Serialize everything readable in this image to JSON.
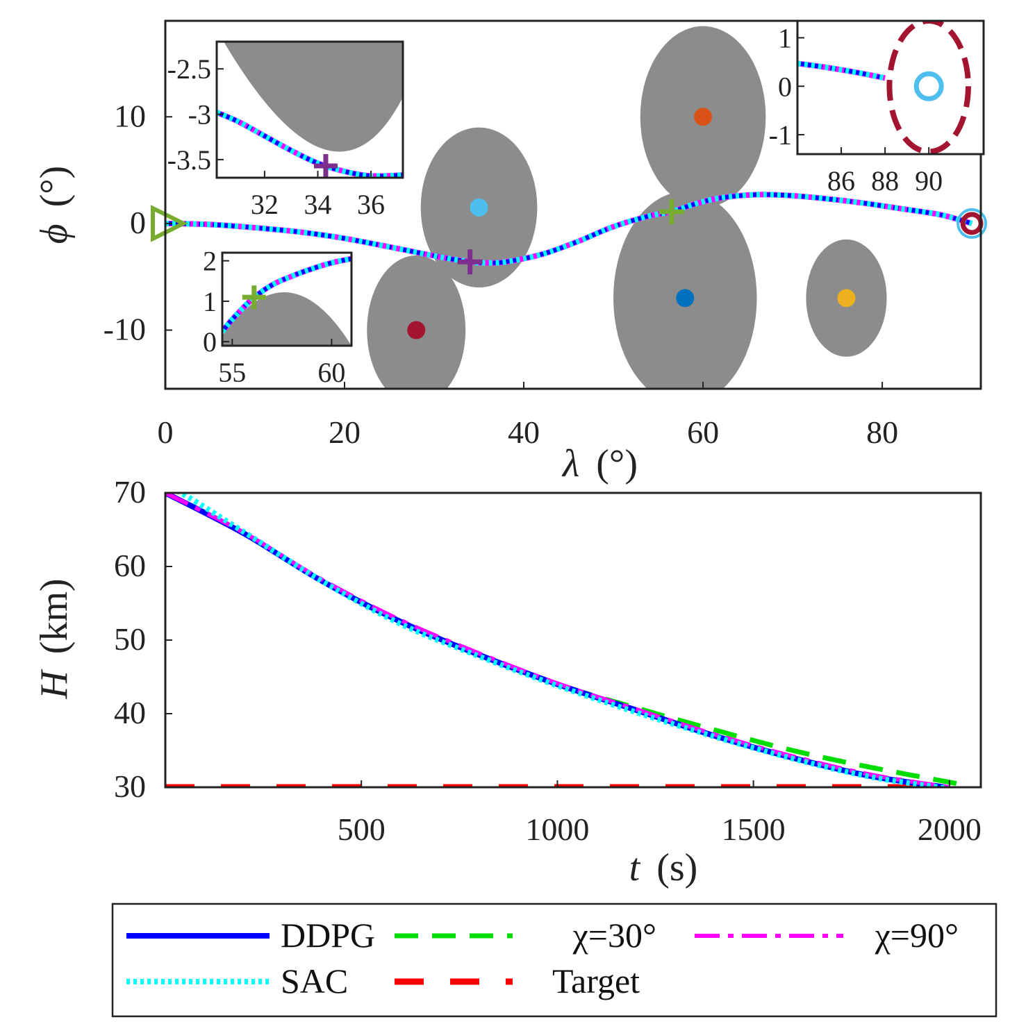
{
  "chart_data": [
    {
      "type": "line",
      "xlabel_symbol": "λ",
      "xlabel_unit": "(°)",
      "ylabel_symbol": "ϕ",
      "ylabel_unit": "(°)",
      "xlim": [
        0,
        91
      ],
      "ylim": [
        -15.5,
        19
      ],
      "xticks": [
        "0",
        "20",
        "40",
        "60",
        "80"
      ],
      "xtick_values": [
        0,
        20,
        40,
        60,
        80
      ],
      "yticks": [
        "-10",
        "0",
        "10"
      ],
      "ytick_values": [
        -10,
        0,
        10
      ],
      "trajectory": {
        "x": [
          0,
          5,
          10,
          15,
          20,
          25,
          28,
          31,
          34,
          36,
          38,
          42,
          46,
          50,
          54,
          56.5,
          59,
          62,
          66,
          70,
          74,
          78,
          82,
          86,
          88,
          90
        ],
        "y": [
          0,
          -0.1,
          -0.4,
          -0.8,
          -1.4,
          -2.2,
          -2.7,
          -3.2,
          -3.6,
          -3.7,
          -3.6,
          -2.9,
          -1.7,
          -0.3,
          0.7,
          1.1,
          1.8,
          2.4,
          2.7,
          2.6,
          2.3,
          1.9,
          1.4,
          0.9,
          0.5,
          0
        ]
      },
      "no_fly_zones": [
        {
          "center": [
            28,
            -10
          ],
          "radius": [
            5.5,
            7
          ],
          "color": "#a2142f"
        },
        {
          "center": [
            35,
            1.5
          ],
          "radius": [
            6.5,
            7.5
          ],
          "color": "#4dbeee"
        },
        {
          "center": [
            58,
            -7
          ],
          "radius": [
            8,
            10
          ],
          "color": "#0072bd"
        },
        {
          "center": [
            60,
            10
          ],
          "radius": [
            7,
            8.5
          ],
          "color": "#d95319"
        },
        {
          "center": [
            76,
            -7
          ],
          "radius": [
            4.5,
            5.5
          ],
          "color": "#edb120"
        }
      ],
      "markers": [
        {
          "name": "start",
          "symbol": "triangle",
          "x": 0,
          "y": 0,
          "color": "#77ac30"
        },
        {
          "name": "plus-a",
          "symbol": "plus",
          "x": 34,
          "y": -3.6,
          "color": "#7e2f8e"
        },
        {
          "name": "plus-b",
          "symbol": "plus",
          "x": 56.5,
          "y": 1.1,
          "color": "#77ac30"
        },
        {
          "name": "goal",
          "symbol": "ring",
          "x": 90,
          "y": 0,
          "color": "#a2142f"
        }
      ],
      "insets": [
        {
          "name": "inset-left-top",
          "xlim": [
            30.2,
            37.2
          ],
          "ylim": [
            -3.7,
            -2.2
          ],
          "xticks": [
            "32",
            "34",
            "36"
          ],
          "xtick_values": [
            32,
            34,
            36
          ],
          "yticks": [
            "-2.5",
            "-3",
            "-3.5"
          ],
          "ytick_values": [
            -2.5,
            -3,
            -3.5
          ],
          "curve": {
            "x": [
              30.2,
              31,
              32,
              33,
              34,
              35,
              36,
              37.2
            ],
            "y": [
              -2.98,
              -3.08,
              -3.24,
              -3.4,
              -3.54,
              -3.63,
              -3.68,
              -3.67
            ]
          },
          "marker": {
            "x": 34.3,
            "y": -3.57,
            "color": "#7e2f8e"
          }
        },
        {
          "name": "inset-left-bottom",
          "xlim": [
            54.5,
            61
          ],
          "ylim": [
            -0.1,
            2.2
          ],
          "xticks": [
            "55",
            "60"
          ],
          "xtick_values": [
            55,
            60
          ],
          "yticks": [
            "2",
            "1",
            "0"
          ],
          "ytick_values": [
            2,
            1,
            0
          ],
          "curve": {
            "x": [
              54.5,
              55,
              56,
              57,
              58,
              59,
              60,
              61
            ],
            "y": [
              0.25,
              0.55,
              1.05,
              1.4,
              1.62,
              1.8,
              1.95,
              2.05
            ]
          },
          "marker": {
            "x": 56.1,
            "y": 1.1,
            "color": "#77ac30"
          }
        },
        {
          "name": "inset-right",
          "xlim": [
            84,
            92.5
          ],
          "ylim": [
            -1.4,
            1.35
          ],
          "xticks": [
            "86",
            "88",
            "90"
          ],
          "xtick_values": [
            86,
            88,
            90
          ],
          "yticks": [
            "1",
            "0",
            "-1"
          ],
          "ytick_values": [
            1,
            0,
            -1
          ],
          "curve": {
            "x": [
              84,
              85,
              86,
              87,
              88
            ],
            "y": [
              0.47,
              0.41,
              0.34,
              0.26,
              0.17
            ]
          },
          "target_circle": {
            "x": 90,
            "y": 0,
            "color": "#4dbeee"
          },
          "goal_ellipse": {
            "x": 90,
            "y": 0,
            "rx": 1.8,
            "ry": 1.35,
            "color": "#a2142f"
          }
        }
      ]
    },
    {
      "type": "line",
      "xlabel_symbol": "t",
      "xlabel_unit": "(s)",
      "ylabel_symbol": "H",
      "ylabel_unit": "(km)",
      "xlim": [
        0,
        2080
      ],
      "ylim": [
        30,
        70
      ],
      "xticks": [
        "500",
        "1000",
        "1500",
        "2000"
      ],
      "xtick_values": [
        500,
        1000,
        1500,
        2000
      ],
      "yticks": [
        "70",
        "60",
        "50",
        "40",
        "30"
      ],
      "ytick_values": [
        70,
        60,
        50,
        40,
        30
      ],
      "series": [
        {
          "name": "DDPG",
          "color": "#0000ff",
          "style": "solid",
          "x": [
            0,
            200,
            400,
            600,
            800,
            1000,
            1200,
            1400,
            1600,
            1800,
            1990
          ],
          "y": [
            70,
            64.5,
            58,
            52.5,
            48,
            44,
            40.5,
            37,
            34,
            31.5,
            30
          ]
        },
        {
          "name": "χ=30°",
          "color": "#00dd00",
          "style": "dash",
          "x": [
            0,
            200,
            400,
            600,
            800,
            1000,
            1200,
            1400,
            1600,
            1800,
            2050
          ],
          "y": [
            70,
            64.5,
            58,
            52.5,
            48,
            44,
            40.8,
            37.8,
            35,
            32.7,
            30.2
          ]
        },
        {
          "name": "χ=90°",
          "color": "#ff00ff",
          "style": "dashdot",
          "x": [
            0,
            200,
            400,
            600,
            800,
            1000,
            1200,
            1400,
            1600,
            1800,
            2000
          ],
          "y": [
            70,
            64.6,
            58.2,
            52.7,
            48.2,
            44.1,
            40.6,
            37.2,
            34.2,
            31.7,
            30
          ]
        },
        {
          "name": "SAC",
          "color": "#00ffff",
          "style": "dot",
          "x": [
            0,
            30,
            200,
            400,
            600,
            800,
            1000,
            1200,
            1400,
            1600,
            1800,
            2000
          ],
          "y": [
            70.2,
            70.3,
            64.7,
            58,
            52.2,
            47.8,
            43.8,
            40.2,
            36.9,
            33.9,
            31.4,
            29.8
          ]
        },
        {
          "name": "Target",
          "color": "#ff0000",
          "style": "longdash",
          "x": [
            0,
            1930
          ],
          "y": [
            30,
            30
          ]
        }
      ]
    }
  ],
  "legend": {
    "placement": "bottom",
    "entries": [
      {
        "label": "DDPG",
        "color": "#0000ff",
        "style": "solid"
      },
      {
        "label": "χ=30°",
        "color": "#00dd00",
        "style": "dash"
      },
      {
        "label": "χ=90°",
        "color": "#ff00ff",
        "style": "dashdot"
      },
      {
        "label": "SAC",
        "color": "#00ffff",
        "style": "dot"
      },
      {
        "label": "Target",
        "color": "#ff0000",
        "style": "longdash"
      }
    ]
  },
  "colors": {
    "no_fly_zone_fill": "#8c8c8c",
    "axis": "#222222"
  }
}
